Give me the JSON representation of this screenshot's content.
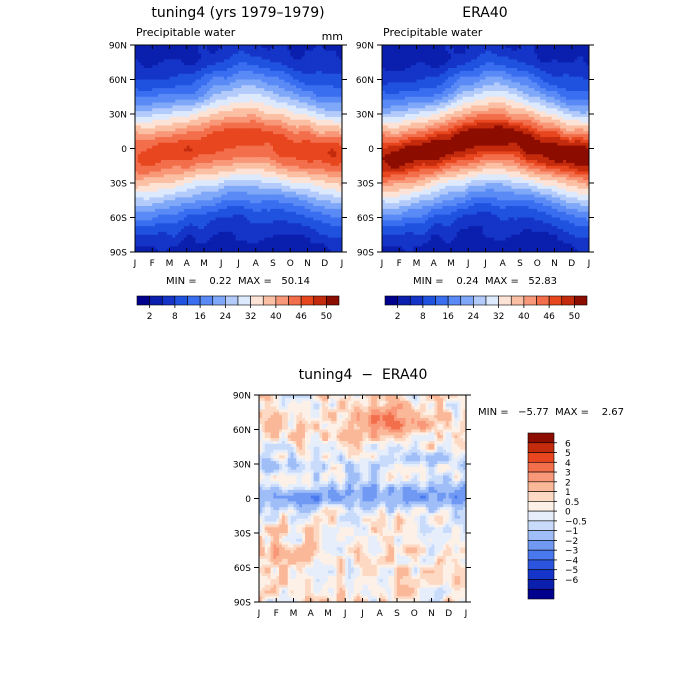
{
  "chart_data": [
    {
      "type": "heatmap",
      "id": "model",
      "title": "tuning4 (yrs 1979–1979)",
      "subtitle": "Precipitable water",
      "units": "mm",
      "stats_label": "MIN =    0.22  MAX =   50.14",
      "min": 0.22,
      "max": 50.14,
      "x_ticks": [
        "J",
        "F",
        "M",
        "A",
        "M",
        "J",
        "J",
        "A",
        "S",
        "O",
        "N",
        "D",
        "J"
      ],
      "y_ticks": [
        "90N",
        "60N",
        "30N",
        "0",
        "30S",
        "60S",
        "90S"
      ],
      "ylim": [
        -90,
        90
      ],
      "field": {
        "eq_peak": 47,
        "seasonal_shift": 6,
        "pole_value": 3,
        "width": 48
      }
    },
    {
      "type": "heatmap",
      "id": "obs",
      "title": "ERA40",
      "subtitle": "Precipitable water",
      "units": "",
      "stats_label": "MIN =    0.24  MAX =   52.83",
      "min": 0.24,
      "max": 52.83,
      "x_ticks": [
        "J",
        "F",
        "M",
        "A",
        "M",
        "J",
        "J",
        "A",
        "S",
        "O",
        "N",
        "D",
        "J"
      ],
      "y_ticks": [
        "90N",
        "60N",
        "30N",
        "0",
        "30S",
        "60S",
        "90S"
      ],
      "ylim": [
        -90,
        90
      ],
      "field": {
        "eq_peak": 51,
        "seasonal_shift": 8,
        "pole_value": 3,
        "width": 46
      }
    },
    {
      "type": "heatmap",
      "id": "diff",
      "title": "tuning4  −  ERA40",
      "stats_label": "MIN =   −5.77  MAX =    2.67",
      "min": -5.77,
      "max": 2.67,
      "x_ticks": [
        "J",
        "F",
        "M",
        "A",
        "M",
        "J",
        "J",
        "A",
        "S",
        "O",
        "N",
        "D",
        "J"
      ],
      "y_ticks": [
        "90N",
        "60N",
        "30N",
        "0",
        "30S",
        "60S",
        "90S"
      ],
      "ylim": [
        -90,
        90
      ]
    }
  ],
  "top_colorbar": {
    "levels": [
      2,
      5,
      8,
      12,
      16,
      20,
      24,
      28,
      32,
      36,
      40,
      43,
      46,
      48,
      50
    ],
    "tick_labels": [
      "2",
      "8",
      "16",
      "24",
      "32",
      "40",
      "46",
      "50"
    ],
    "colors": [
      "#00008f",
      "#0b1fae",
      "#1534c8",
      "#2052e0",
      "#3a6ef0",
      "#5a8af5",
      "#80a8f8",
      "#b2cbfb",
      "#dde9fd",
      "#fde3d6",
      "#fbc0a4",
      "#f89878",
      "#f36e4b",
      "#e8461e",
      "#c42a0c",
      "#8c0d00"
    ]
  },
  "diff_colorbar": {
    "labels": [
      "6",
      "5",
      "4",
      "3",
      "2",
      "1",
      "0.5",
      "0",
      "−0.5",
      "−1",
      "−2",
      "−3",
      "−4",
      "−5",
      "−6"
    ],
    "colors": [
      "#8c0d00",
      "#c42a0c",
      "#e8461e",
      "#f36e4b",
      "#f89878",
      "#fbb898",
      "#fdd9c4",
      "#fdf0e6",
      "#e6eefc",
      "#c8dbfb",
      "#9fbef8",
      "#7099f4",
      "#4a78ef",
      "#2c55df",
      "#1534c8",
      "#0b1fae",
      "#00008f"
    ],
    "levels": [
      6,
      5,
      4,
      3,
      2,
      1,
      0.5,
      0,
      -0.5,
      -1,
      -2,
      -3,
      -4,
      -5,
      -6
    ]
  }
}
